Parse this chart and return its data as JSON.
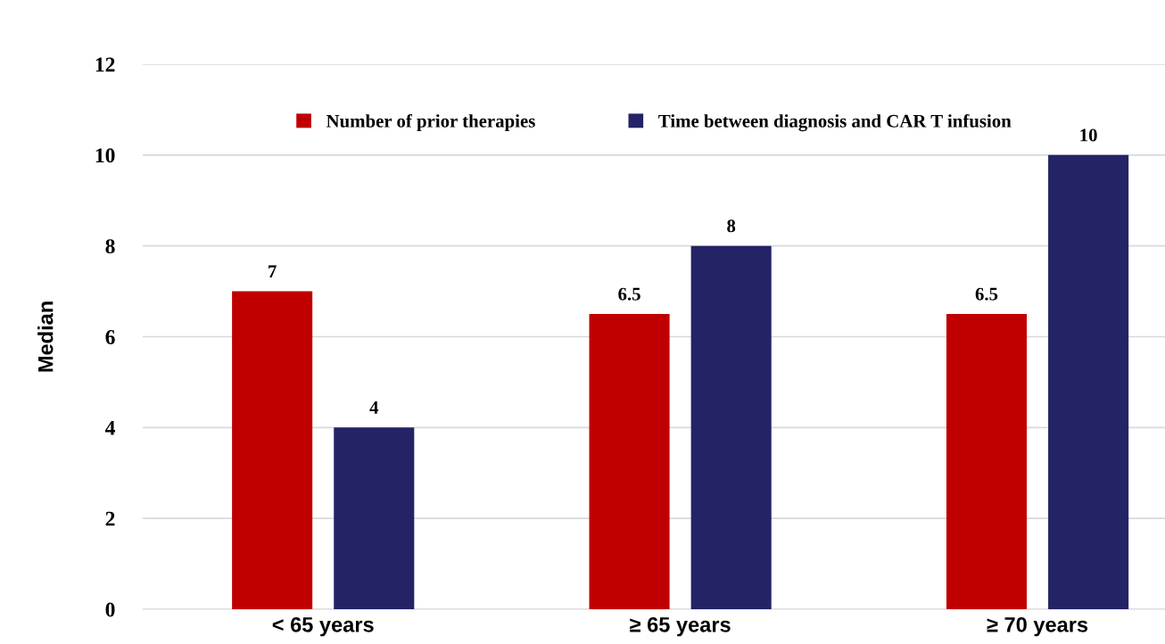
{
  "chart_data": {
    "type": "bar",
    "ylabel": "Median",
    "categories": [
      "< 65 years",
      "≥ 65 years",
      "≥ 70 years"
    ],
    "series": [
      {
        "name": "Number of prior therapies",
        "color": "#c00000",
        "values": [
          7,
          6.5,
          6.5
        ]
      },
      {
        "name": "Time between diagnosis and CAR T infusion",
        "color": "#232366",
        "values": [
          4,
          8,
          10
        ]
      }
    ],
    "ylim": [
      0,
      12
    ],
    "yticks": [
      0,
      2,
      4,
      6,
      8,
      10,
      12
    ],
    "grid": "y",
    "legend": "top",
    "data_labels": true
  }
}
